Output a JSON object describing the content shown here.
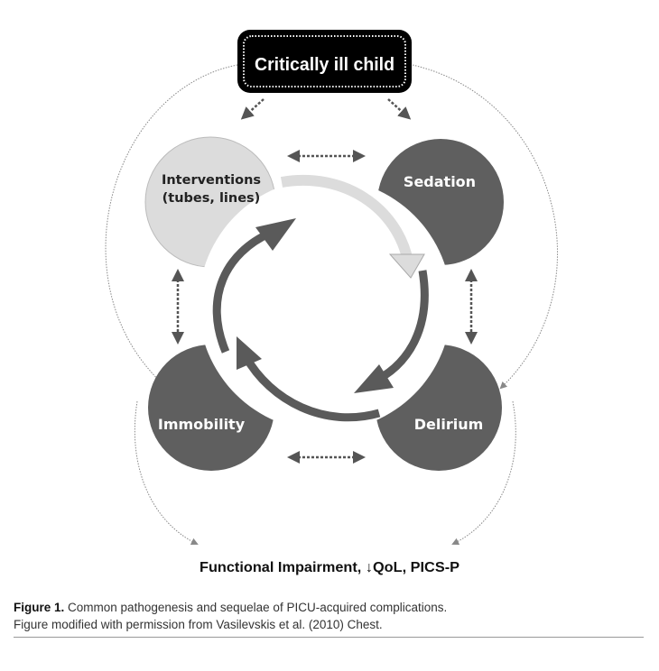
{
  "diagram": {
    "top_node": "Critically ill child",
    "nodes": [
      {
        "id": "interventions",
        "line1": "Interventions",
        "line2": "(tubes, lines)",
        "color": "#dcdcdc"
      },
      {
        "id": "sedation",
        "label": "Sedation",
        "color": "#5f5f5f"
      },
      {
        "id": "immobility",
        "label": "Immobility",
        "color": "#5f5f5f"
      },
      {
        "id": "delirium",
        "label": "Delirium",
        "color": "#5f5f5f"
      }
    ],
    "outcome": "Functional Impairment, ↓QoL, PICS-P"
  },
  "caption": {
    "label": "Figure 1.",
    "line1": "Common pathogenesis and sequelae of PICU-acquired complications.",
    "line2": "Figure modified with permission from Vasilevskis et al. (2010) Chest."
  }
}
